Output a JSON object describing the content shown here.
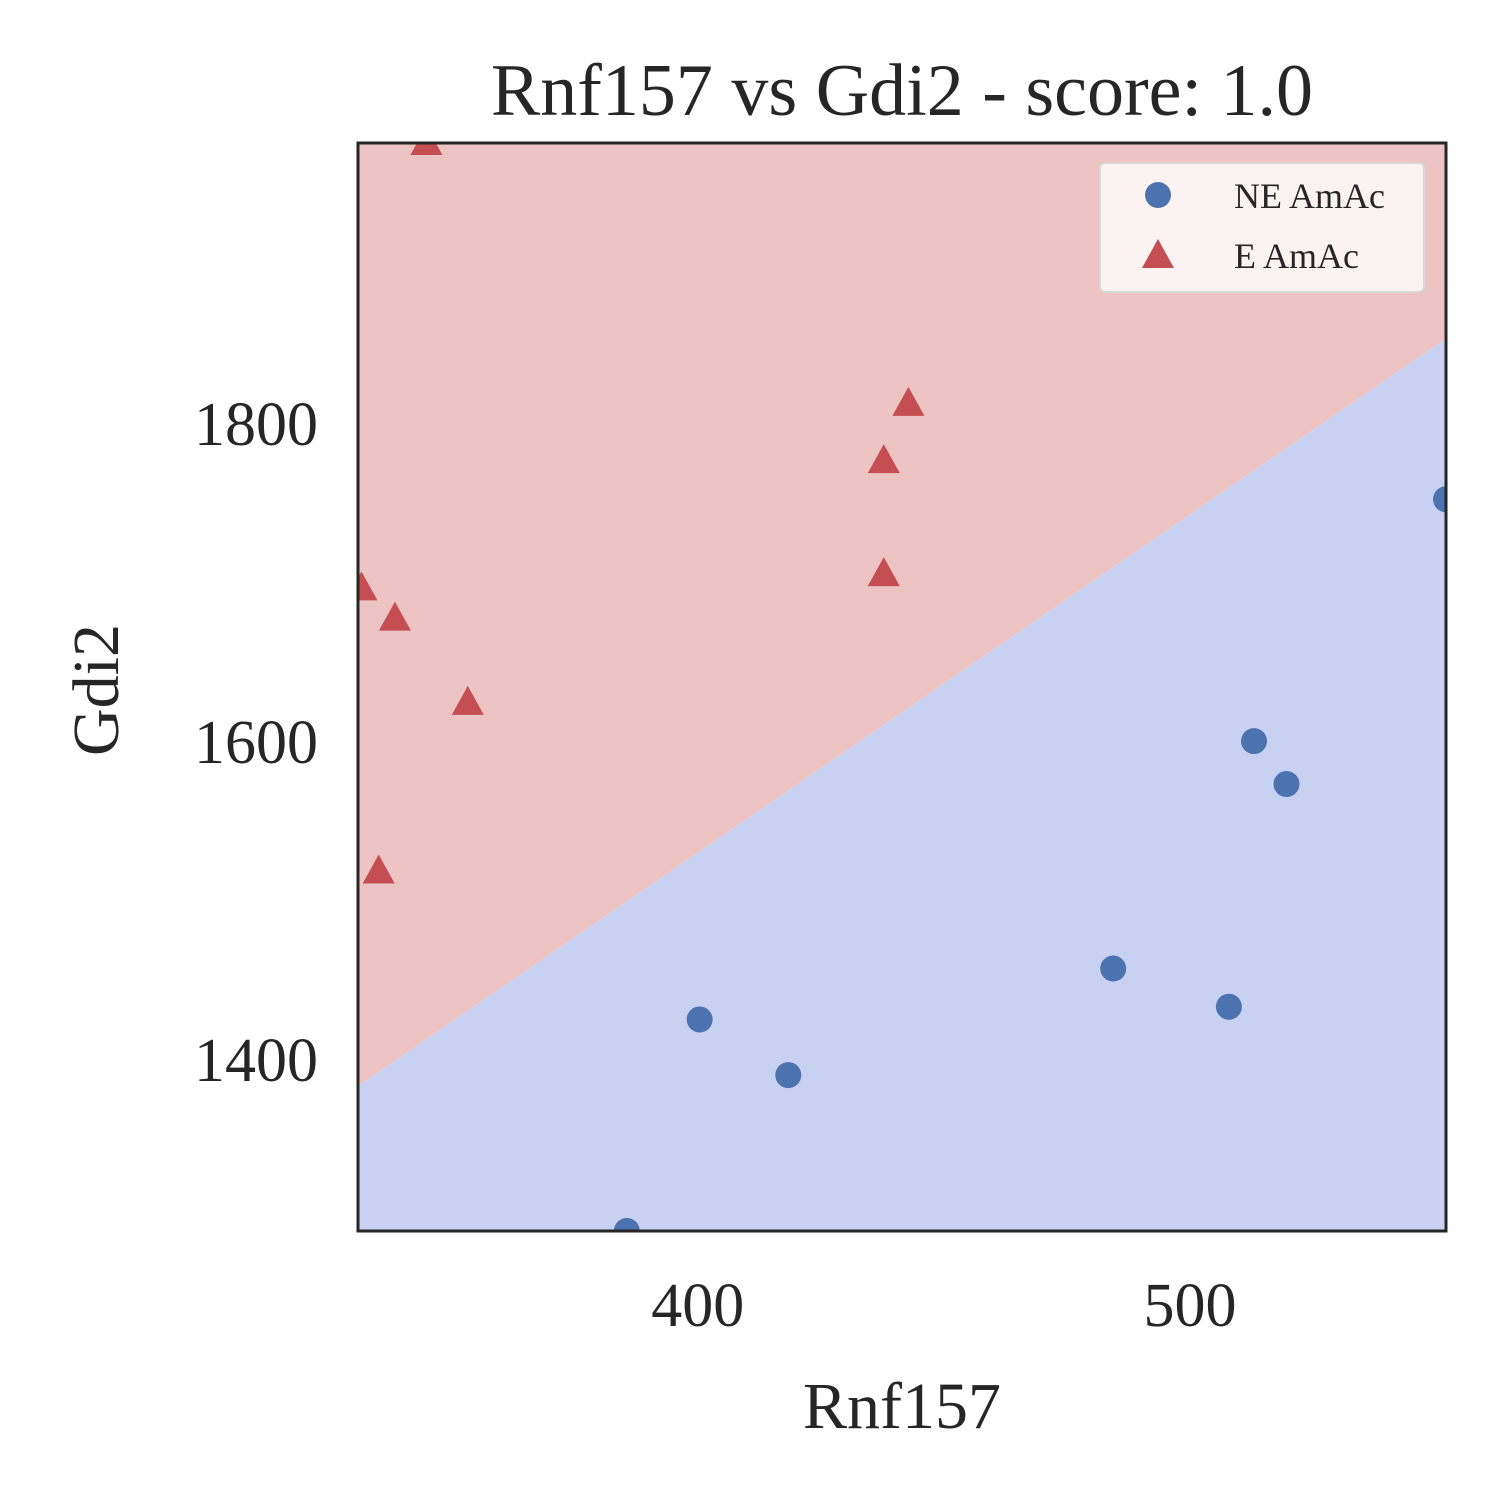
{
  "chart_data": {
    "type": "scatter",
    "title": "Rnf157 vs Gdi2 - score: 1.0",
    "xlabel": "Rnf157",
    "ylabel": "Gdi2",
    "xlim": [
      331,
      552
    ],
    "ylim": [
      1292,
      1976
    ],
    "xticks": [
      400,
      500
    ],
    "yticks": [
      1400,
      1600,
      1800
    ],
    "grid": false,
    "legend_position": "top-right",
    "decision_boundary": {
      "points": [
        [
          331,
          1383
        ],
        [
          552,
          1853
        ]
      ],
      "below_class": "NE AmAc",
      "above_class": "E AmAc",
      "below_color": "#c8d1f2",
      "above_color": "#edc4c3"
    },
    "series": [
      {
        "name": "NE AmAc",
        "marker": "circle",
        "color": "#4c72b0",
        "points": [
          [
            385.6,
            1292
          ],
          [
            400.4,
            1425
          ],
          [
            418.4,
            1390
          ],
          [
            484.4,
            1457
          ],
          [
            507.9,
            1433
          ],
          [
            513.0,
            1600
          ],
          [
            519.6,
            1573
          ],
          [
            552.0,
            1752
          ]
        ]
      },
      {
        "name": "E AmAc",
        "marker": "triangle",
        "color": "#c44e52",
        "points": [
          [
            344.9,
            1976
          ],
          [
            331.7,
            1696
          ],
          [
            338.5,
            1677
          ],
          [
            353.3,
            1624
          ],
          [
            335.2,
            1518
          ],
          [
            437.8,
            1776
          ],
          [
            442.8,
            1812
          ],
          [
            437.8,
            1705
          ]
        ]
      }
    ]
  }
}
